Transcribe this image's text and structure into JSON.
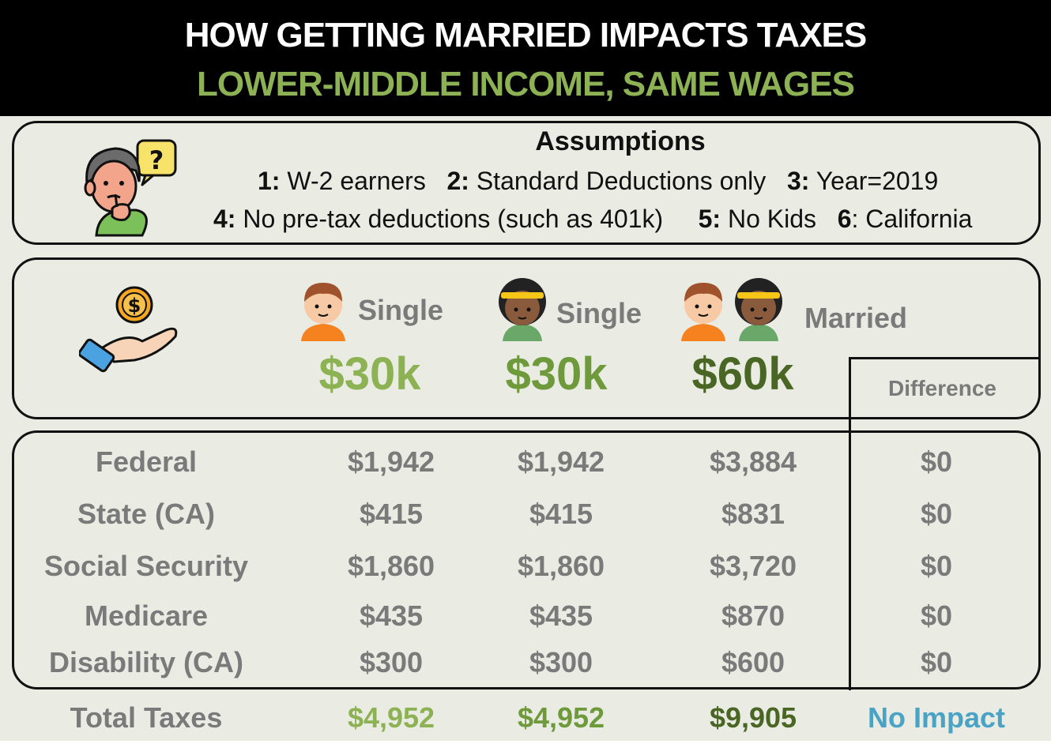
{
  "header": {
    "title": "HOW GETTING MARRIED IMPACTS TAXES",
    "subtitle": "LOWER-MIDDLE INCOME, SAME WAGES"
  },
  "assumptions": {
    "title": "Assumptions",
    "items": [
      {
        "num": "1:",
        "text": " W-2 earners"
      },
      {
        "num": "2:",
        "text": " Standard Deductions only"
      },
      {
        "num": "3:",
        "text": " Year=2019"
      },
      {
        "num": "4:",
        "text": " No pre-tax deductions (such as 401k)"
      },
      {
        "num": "5:",
        "text": " No Kids"
      },
      {
        "num": "6",
        "text": ": California"
      }
    ]
  },
  "columns": {
    "person1_label": "Single",
    "person1_income": "$30k",
    "person2_label": "Single",
    "person2_income": "$30k",
    "married_label": "Married",
    "married_income": "$60k",
    "difference_label": "Difference"
  },
  "rows": [
    {
      "label": "Federal",
      "single1": "$1,942",
      "single2": "$1,942",
      "married": "$3,884",
      "difference": "$0"
    },
    {
      "label": "State (CA)",
      "single1": "$415",
      "single2": "$415",
      "married": "$831",
      "difference": "$0"
    },
    {
      "label": "Social Security",
      "single1": "$1,860",
      "single2": "$1,860",
      "married": "$3,720",
      "difference": "$0"
    },
    {
      "label": "Medicare",
      "single1": "$435",
      "single2": "$435",
      "married": "$870",
      "difference": "$0"
    },
    {
      "label": "Disability (CA)",
      "single1": "$300",
      "single2": "$300",
      "married": "$600",
      "difference": "$0"
    }
  ],
  "totals": {
    "label": "Total Taxes",
    "single1": "$4,952",
    "single2": "$4,952",
    "married": "$9,905",
    "difference": "No Impact"
  },
  "colors": {
    "light_green": "#8db254",
    "mid_green": "#6e9a3c",
    "dark_green": "#4a6624",
    "header_green": "#8db254",
    "blue": "#4aa3c5",
    "gray": "#7a7a7a"
  },
  "icons": [
    "confused-person-icon",
    "money-hand-icon",
    "boy-avatar-icon",
    "girl-avatar-icon"
  ]
}
